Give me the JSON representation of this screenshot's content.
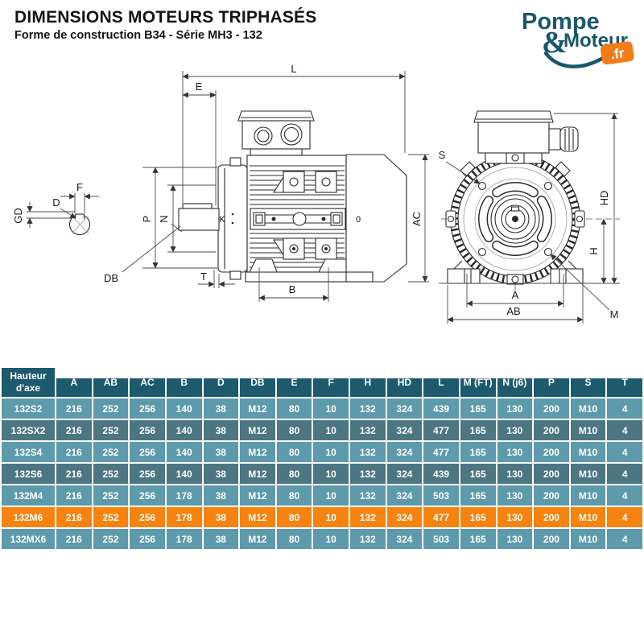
{
  "header": {
    "title": "DIMENSIONS MOTEURS TRIPHASÉS",
    "subtitle": "Forme de construction B34 - Série MH3 - 132"
  },
  "logo": {
    "word1": "Pompe",
    "ampersand": "&",
    "word2": "Moteur",
    "tld": ".fr",
    "text_color": "#19576b",
    "badge_color": "#ef7e19"
  },
  "drawing": {
    "labels": {
      "L": "L",
      "E": "E",
      "P": "P",
      "N": "N",
      "K": "K",
      "O": "0",
      "AC": "AC",
      "DB": "DB",
      "T": "T",
      "B": "B",
      "F": "F",
      "D": "D",
      "GD": "GD",
      "S": "S",
      "HD": "HD",
      "H": "H",
      "A": "A",
      "AB": "AB",
      "M": "M"
    }
  },
  "table": {
    "axis_line1": "Hauteur",
    "axis_line2": "d'axe",
    "columns": [
      "A",
      "AB",
      "AC",
      "B",
      "D",
      "DB",
      "E",
      "F",
      "H",
      "HD",
      "L",
      "M (FT)",
      "N (j6)",
      "P",
      "S",
      "T"
    ],
    "rows": [
      {
        "model": "132S2",
        "values": [
          216,
          252,
          256,
          140,
          38,
          "M12",
          80,
          10,
          132,
          324,
          439,
          165,
          130,
          200,
          "M10",
          4
        ],
        "highlight": false
      },
      {
        "model": "132SX2",
        "values": [
          216,
          252,
          256,
          140,
          38,
          "M12",
          80,
          10,
          132,
          324,
          477,
          165,
          130,
          200,
          "M10",
          4
        ],
        "highlight": false
      },
      {
        "model": "132S4",
        "values": [
          216,
          252,
          256,
          140,
          38,
          "M12",
          80,
          10,
          132,
          324,
          477,
          165,
          130,
          200,
          "M10",
          4
        ],
        "highlight": false
      },
      {
        "model": "132S6",
        "values": [
          216,
          252,
          256,
          140,
          38,
          "M12",
          80,
          10,
          132,
          324,
          439,
          165,
          130,
          200,
          "M10",
          4
        ],
        "highlight": false
      },
      {
        "model": "132M4",
        "values": [
          216,
          252,
          256,
          178,
          38,
          "M12",
          80,
          10,
          132,
          324,
          503,
          165,
          130,
          200,
          "M10",
          4
        ],
        "highlight": false
      },
      {
        "model": "132M6",
        "values": [
          216,
          252,
          256,
          178,
          38,
          "M12",
          80,
          10,
          132,
          324,
          477,
          165,
          130,
          200,
          "M10",
          4
        ],
        "highlight": true
      },
      {
        "model": "132MX6",
        "values": [
          216,
          252,
          256,
          178,
          38,
          "M12",
          80,
          10,
          132,
          324,
          503,
          165,
          130,
          200,
          "M10",
          4
        ],
        "highlight": false
      }
    ],
    "colors": {
      "header_bg": "#1d5a6e",
      "row_light": "#5d9aac",
      "row_dark": "#4b7682",
      "highlight": "#f6830f",
      "text": "#ffffff"
    }
  }
}
